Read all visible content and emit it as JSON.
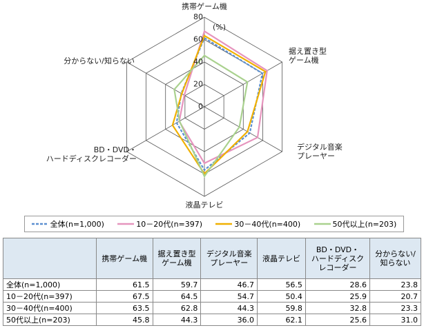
{
  "chart_data": {
    "type": "radar",
    "y_unit": "(%)",
    "categories": [
      "携帯ゲーム機",
      "据え置き型\nゲーム機",
      "デジタル音楽\nプレーヤー",
      "液晶テレビ",
      "BD・DVD・\nハードディスクレコーダー",
      "分からない/知らない"
    ],
    "ylim": [
      0,
      80
    ],
    "yticks": [
      0,
      20,
      40,
      60,
      80
    ],
    "grid": true,
    "series": [
      {
        "name": "全体(n=1,000)",
        "color": "#5b8fd0",
        "line_style": "dashed",
        "values": [
          61.5,
          59.7,
          46.7,
          56.5,
          28.6,
          23.8
        ]
      },
      {
        "name": "10－20代(n=397)",
        "color": "#e694bd",
        "line_style": "solid",
        "values": [
          67.5,
          64.5,
          54.7,
          50.4,
          25.9,
          20.7
        ]
      },
      {
        "name": "30－40代(n=400)",
        "color": "#f0b000",
        "line_style": "solid",
        "values": [
          63.5,
          62.8,
          44.3,
          59.8,
          32.8,
          23.3
        ]
      },
      {
        "name": "50代以上(n=203)",
        "color": "#a9d18e",
        "line_style": "solid",
        "values": [
          45.8,
          44.3,
          36.0,
          62.1,
          25.6,
          31.0
        ]
      }
    ]
  },
  "table": {
    "columns": [
      "携帯ゲーム機",
      "据え置き型\nゲーム機",
      "デジタル音楽\nプレーヤー",
      "液晶テレビ",
      "BD・DVD・\nハードディスク\nレコーダー",
      "分からない/\n知らない"
    ],
    "rows": [
      [
        "全体(n=1,000)",
        "61.5",
        "59.7",
        "46.7",
        "56.5",
        "28.6",
        "23.8"
      ],
      [
        "10－20代(n=397)",
        "67.5",
        "64.5",
        "54.7",
        "50.4",
        "25.9",
        "20.7"
      ],
      [
        "30－40代(n=400)",
        "63.5",
        "62.8",
        "44.3",
        "59.8",
        "32.8",
        "23.3"
      ],
      [
        "50代以上(n=203)",
        "45.8",
        "44.3",
        "36.0",
        "62.1",
        "25.6",
        "31.0"
      ]
    ]
  }
}
